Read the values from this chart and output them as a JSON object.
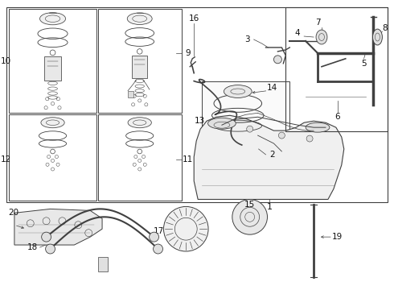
{
  "bg_color": "#ffffff",
  "line_color": "#404040",
  "border_color": "#404040",
  "label_color": "#111111",
  "fig_width": 4.9,
  "fig_height": 3.6,
  "dpi": 100
}
